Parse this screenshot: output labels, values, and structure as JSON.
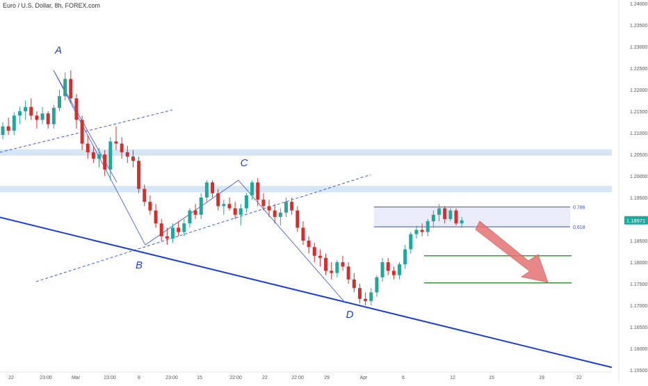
{
  "header": {
    "title": "Euro / U.S. Dollar, 8h, FOREX.com"
  },
  "colors": {
    "up": "#26a69a",
    "down": "#d32f2f",
    "zone": "#cfe2f3",
    "pattern": "#4a5fd6",
    "trendline": "#1f3fd1",
    "target": "#2e9e2e",
    "arrow": "#e57373",
    "price_badge": "#26a69a"
  },
  "chart_data": {
    "type": "candlestick",
    "title": "Euro / U.S. Dollar, 8h, FOREX.com",
    "ylim": [
      1.155,
      1.24
    ],
    "y_ticks": [
      "1.24000",
      "1.23500",
      "1.23000",
      "1.22500",
      "1.22000",
      "1.21500",
      "1.21000",
      "1.20500",
      "1.20000",
      "1.19500",
      "1.19000",
      "1.18500",
      "1.18000",
      "1.17500",
      "1.17000",
      "1.16500",
      "1.16000",
      "1.15500"
    ],
    "x_ticks": [
      "22",
      "23:00",
      "Mar",
      "23:00",
      "8",
      "23:00",
      "15",
      "22:00",
      "22",
      "22:00",
      "29",
      "Apr",
      "6",
      "12",
      "15",
      "19",
      "22"
    ],
    "last_price": "1.18971",
    "fib_levels": [
      {
        "label": "0.786",
        "price": 1.1928
      },
      {
        "label": "0.618",
        "price": 1.1882
      }
    ],
    "pattern_points": [
      "A",
      "B",
      "C",
      "D"
    ],
    "resistance_zones": [
      {
        "low": 1.2047,
        "high": 1.2062
      },
      {
        "low": 1.1962,
        "high": 1.1977
      }
    ],
    "targets": [
      1.1815,
      1.1752
    ],
    "candles": [
      [
        1.2095,
        1.2125,
        1.2085,
        1.2115
      ],
      [
        1.2115,
        1.2135,
        1.2095,
        1.2105
      ],
      [
        1.2105,
        1.2148,
        1.2095,
        1.214
      ],
      [
        1.214,
        1.216,
        1.212,
        1.215
      ],
      [
        1.215,
        1.2175,
        1.213,
        1.216
      ],
      [
        1.216,
        1.218,
        1.213,
        1.214
      ],
      [
        1.214,
        1.215,
        1.211,
        1.213
      ],
      [
        1.213,
        1.216,
        1.212,
        1.2145
      ],
      [
        1.2145,
        1.215,
        1.211,
        1.212
      ],
      [
        1.212,
        1.2165,
        1.211,
        1.2158
      ],
      [
        1.2158,
        1.22,
        1.215,
        1.2185
      ],
      [
        1.2185,
        1.224,
        1.2175,
        1.2225
      ],
      [
        1.2225,
        1.2245,
        1.217,
        1.218
      ],
      [
        1.218,
        1.219,
        1.211,
        1.213
      ],
      [
        1.213,
        1.214,
        1.206,
        1.2075
      ],
      [
        1.2075,
        1.2095,
        1.204,
        1.2055
      ],
      [
        1.2055,
        1.207,
        1.203,
        1.204
      ],
      [
        1.204,
        1.2065,
        1.202,
        1.205
      ],
      [
        1.205,
        1.206,
        1.2,
        1.2015
      ],
      [
        1.2015,
        1.209,
        1.199,
        1.208
      ],
      [
        1.208,
        1.2115,
        1.206,
        1.2075
      ],
      [
        1.2075,
        1.209,
        1.204,
        1.2055
      ],
      [
        1.2055,
        1.207,
        1.203,
        1.2045
      ],
      [
        1.2045,
        1.206,
        1.202,
        1.2035
      ],
      [
        1.2035,
        1.2045,
        1.196,
        1.197
      ],
      [
        1.197,
        1.198,
        1.193,
        1.194
      ],
      [
        1.194,
        1.1955,
        1.191,
        1.192
      ],
      [
        1.192,
        1.1935,
        1.188,
        1.189
      ],
      [
        1.189,
        1.19,
        1.185,
        1.186
      ],
      [
        1.186,
        1.188,
        1.184,
        1.1855
      ],
      [
        1.1855,
        1.189,
        1.1845,
        1.188
      ],
      [
        1.188,
        1.1895,
        1.186,
        1.187
      ],
      [
        1.187,
        1.19,
        1.186,
        1.189
      ],
      [
        1.189,
        1.1925,
        1.188,
        1.192
      ],
      [
        1.192,
        1.1935,
        1.19,
        1.191
      ],
      [
        1.191,
        1.196,
        1.19,
        1.195
      ],
      [
        1.195,
        1.199,
        1.194,
        1.1985
      ],
      [
        1.1985,
        1.199,
        1.195,
        1.196
      ],
      [
        1.196,
        1.197,
        1.192,
        1.193
      ],
      [
        1.193,
        1.1945,
        1.191,
        1.1935
      ],
      [
        1.1935,
        1.195,
        1.192,
        1.1925
      ],
      [
        1.1925,
        1.194,
        1.19,
        1.191
      ],
      [
        1.191,
        1.1935,
        1.1885,
        1.1925
      ],
      [
        1.1925,
        1.196,
        1.1915,
        1.1955
      ],
      [
        1.1955,
        1.199,
        1.1945,
        1.1985
      ],
      [
        1.1985,
        1.1995,
        1.193,
        1.1945
      ],
      [
        1.1945,
        1.196,
        1.192,
        1.193
      ],
      [
        1.193,
        1.1945,
        1.1905,
        1.192
      ],
      [
        1.192,
        1.1935,
        1.189,
        1.1905
      ],
      [
        1.1905,
        1.1925,
        1.1885,
        1.1915
      ],
      [
        1.1915,
        1.195,
        1.1905,
        1.194
      ],
      [
        1.194,
        1.195,
        1.191,
        1.192
      ],
      [
        1.192,
        1.193,
        1.187,
        1.188
      ],
      [
        1.188,
        1.1895,
        1.184,
        1.185
      ],
      [
        1.185,
        1.186,
        1.182,
        1.1835
      ],
      [
        1.1835,
        1.1845,
        1.18,
        1.1815
      ],
      [
        1.1815,
        1.183,
        1.179,
        1.181
      ],
      [
        1.181,
        1.182,
        1.177,
        1.178
      ],
      [
        1.178,
        1.18,
        1.176,
        1.1775
      ],
      [
        1.1775,
        1.1805,
        1.1765,
        1.18
      ],
      [
        1.18,
        1.1815,
        1.178,
        1.179
      ],
      [
        1.179,
        1.18,
        1.175,
        1.176
      ],
      [
        1.176,
        1.1775,
        1.173,
        1.174
      ],
      [
        1.174,
        1.175,
        1.1705,
        1.1715
      ],
      [
        1.1715,
        1.173,
        1.17,
        1.171
      ],
      [
        1.171,
        1.174,
        1.17,
        1.173
      ],
      [
        1.173,
        1.177,
        1.172,
        1.1765
      ],
      [
        1.1765,
        1.181,
        1.1755,
        1.18
      ],
      [
        1.18,
        1.181,
        1.177,
        1.178
      ],
      [
        1.178,
        1.179,
        1.176,
        1.177
      ],
      [
        1.177,
        1.18,
        1.176,
        1.1795
      ],
      [
        1.1795,
        1.184,
        1.1785,
        1.183
      ],
      [
        1.183,
        1.187,
        1.182,
        1.1865
      ],
      [
        1.1865,
        1.1885,
        1.1855,
        1.1875
      ],
      [
        1.1875,
        1.189,
        1.186,
        1.187
      ],
      [
        1.187,
        1.19,
        1.186,
        1.1895
      ],
      [
        1.1895,
        1.192,
        1.188,
        1.191
      ],
      [
        1.191,
        1.1935,
        1.1895,
        1.1925
      ],
      [
        1.1925,
        1.193,
        1.189,
        1.19
      ],
      [
        1.19,
        1.1925,
        1.1895,
        1.192
      ],
      [
        1.192,
        1.1925,
        1.1885,
        1.189
      ],
      [
        1.189,
        1.1905,
        1.188,
        1.1897
      ]
    ]
  }
}
